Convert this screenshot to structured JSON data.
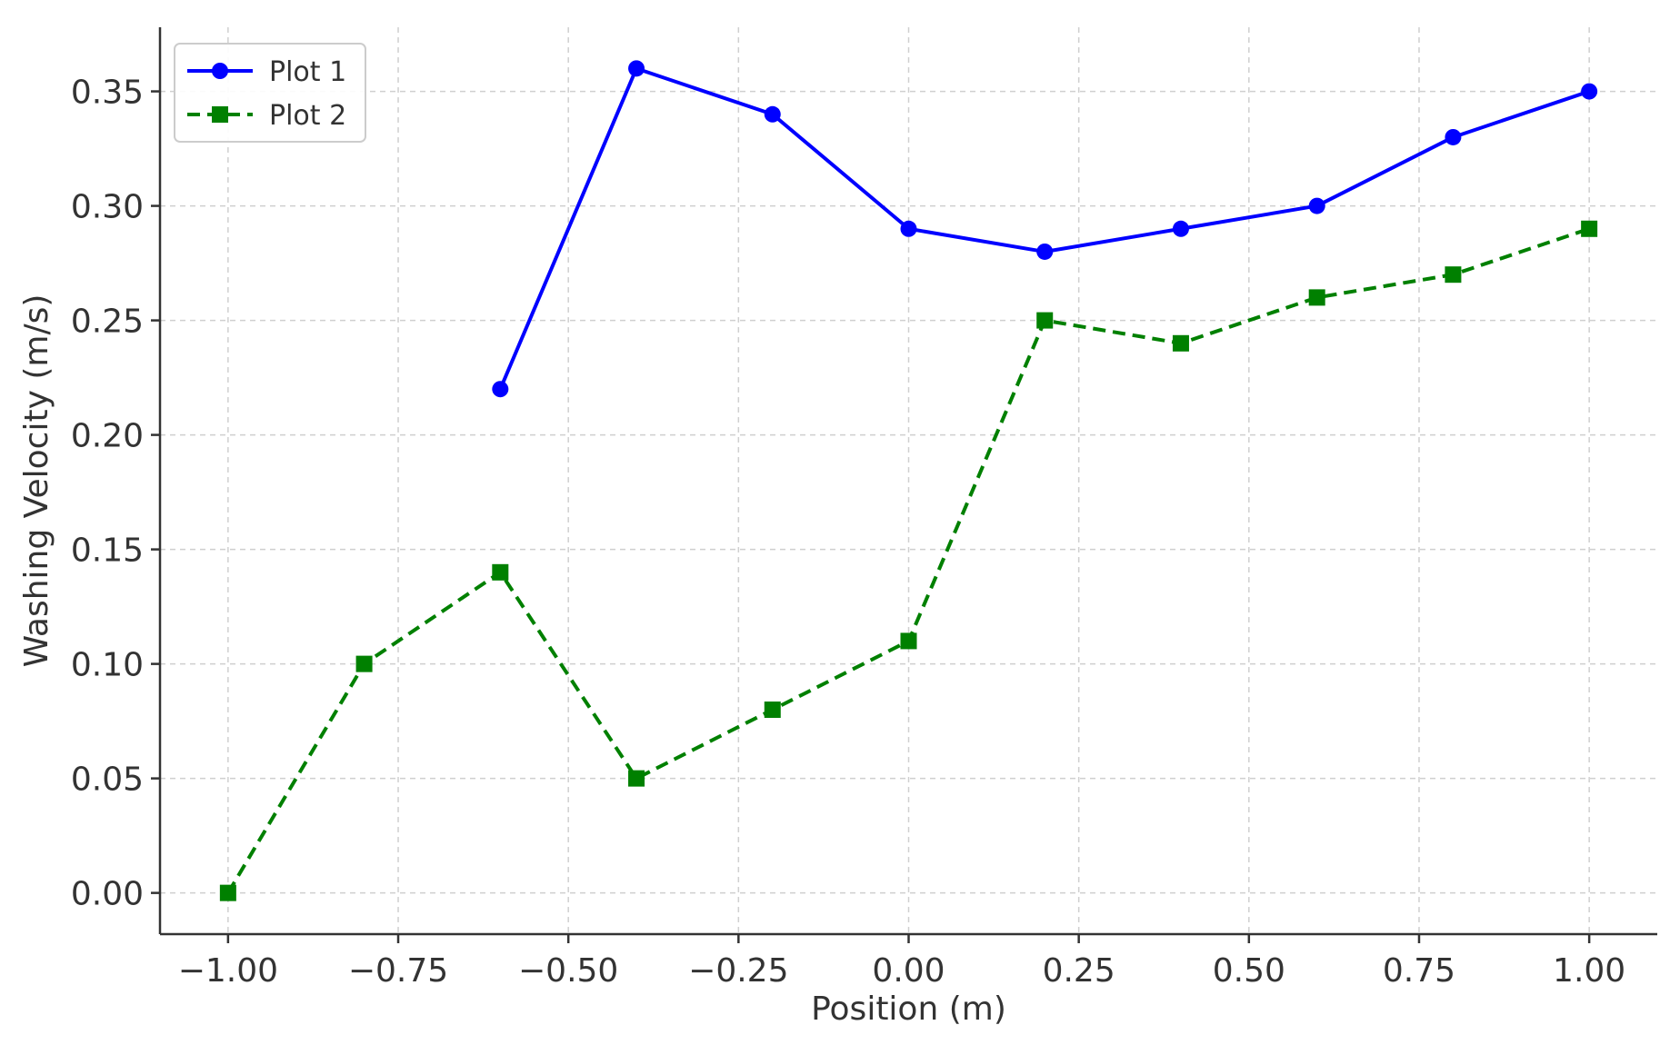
{
  "chart_data": {
    "type": "line",
    "title": "",
    "xlabel": "Position (m)",
    "ylabel": "Washing Velocity (m/s)",
    "xlim": [
      -1.1,
      1.1
    ],
    "ylim": [
      -0.018,
      0.378
    ],
    "xticks": [
      -1.0,
      -0.75,
      -0.5,
      -0.25,
      0.0,
      0.25,
      0.5,
      0.75,
      1.0
    ],
    "xtick_labels": [
      "−1.00",
      "−0.75",
      "−0.50",
      "−0.25",
      "0.00",
      "0.25",
      "0.50",
      "0.75",
      "1.00"
    ],
    "yticks": [
      0.0,
      0.05,
      0.1,
      0.15,
      0.2,
      0.25,
      0.3,
      0.35
    ],
    "ytick_labels": [
      "0.00",
      "0.05",
      "0.10",
      "0.15",
      "0.20",
      "0.25",
      "0.30",
      "0.35"
    ],
    "grid": true,
    "legend_position": "top-left",
    "series": [
      {
        "name": "Plot 1",
        "color": "#0000ff",
        "linestyle": "solid",
        "marker": "circle",
        "x": [
          -0.6,
          -0.4,
          -0.2,
          0.0,
          0.2,
          0.4,
          0.6,
          0.8,
          1.0
        ],
        "y": [
          0.22,
          0.36,
          0.34,
          0.29,
          0.28,
          0.29,
          0.3,
          0.33,
          0.35
        ]
      },
      {
        "name": "Plot 2",
        "color": "#008000",
        "linestyle": "dashed",
        "marker": "square",
        "x": [
          -1.0,
          -0.8,
          -0.6,
          -0.4,
          -0.2,
          0.0,
          0.2,
          0.4,
          0.6,
          0.8,
          1.0
        ],
        "y": [
          0.0,
          0.1,
          0.14,
          0.05,
          0.08,
          0.11,
          0.25,
          0.24,
          0.26,
          0.27,
          0.29
        ]
      }
    ]
  }
}
